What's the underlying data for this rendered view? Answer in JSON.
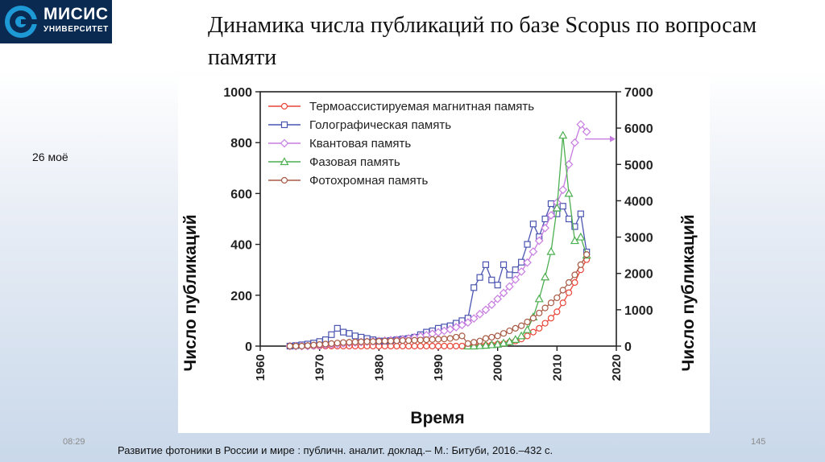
{
  "logo": {
    "name": "МИСИС",
    "subtitle": "УНИВЕРСИТЕТ"
  },
  "slide": {
    "title": "Динамика числа публикаций по базе Scopus по вопросам памяти",
    "side_note": "26 моё",
    "time": "08:29",
    "page_number": "145",
    "footer": "Развитие фотоники в России и мире : публичн. аналит. доклад.– М.: Битуби, 2016.–432 с."
  },
  "chart_data": {
    "type": "line",
    "xlabel": "Время",
    "ylabel_left": "Число публикаций",
    "ylabel_right": "Число публикаций",
    "xlim": [
      1960,
      2020
    ],
    "ylim_left": [
      0,
      1000
    ],
    "ylim_right": [
      0,
      7000
    ],
    "xticks": [
      1960,
      1970,
      1980,
      1990,
      2000,
      2010,
      2020
    ],
    "yticks_left": [
      0,
      200,
      400,
      600,
      800,
      1000
    ],
    "yticks_right": [
      0,
      1000,
      2000,
      3000,
      4000,
      5000,
      6000,
      7000
    ],
    "legend_position": "top-left",
    "grid": false,
    "series": [
      {
        "name": "Термоассистируемая магнитная память",
        "color": "#e8473a",
        "marker": "circle",
        "axis": "left",
        "x": [
          1965,
          1966,
          1967,
          1968,
          1969,
          1970,
          1971,
          1972,
          1973,
          1974,
          1975,
          1976,
          1977,
          1978,
          1979,
          1980,
          1981,
          1982,
          1983,
          1984,
          1985,
          1986,
          1987,
          1988,
          1989,
          1990,
          1991,
          1992,
          1993,
          1994,
          1995,
          1996,
          1997,
          1998,
          1999,
          2000,
          2001,
          2002,
          2003,
          2004,
          2005,
          2006,
          2007,
          2008,
          2009,
          2010,
          2011,
          2012,
          2013,
          2014,
          2015
        ],
        "y": [
          0,
          0,
          0,
          0,
          0,
          0,
          0,
          0,
          0,
          0,
          0,
          0,
          0,
          0,
          0,
          0,
          0,
          0,
          0,
          0,
          0,
          0,
          0,
          0,
          0,
          0,
          0,
          0,
          0,
          0,
          0,
          0,
          2,
          3,
          5,
          8,
          10,
          15,
          20,
          28,
          40,
          55,
          70,
          90,
          110,
          135,
          170,
          210,
          250,
          300,
          340
        ]
      },
      {
        "name": "Голографическая память",
        "color": "#4a55b0",
        "marker": "square",
        "axis": "left",
        "x": [
          1965,
          1966,
          1967,
          1968,
          1969,
          1970,
          1971,
          1972,
          1973,
          1974,
          1975,
          1976,
          1977,
          1978,
          1979,
          1980,
          1981,
          1982,
          1983,
          1984,
          1985,
          1986,
          1987,
          1988,
          1989,
          1990,
          1991,
          1992,
          1993,
          1994,
          1995,
          1996,
          1997,
          1998,
          1999,
          2000,
          2001,
          2002,
          2003,
          2004,
          2005,
          2006,
          2007,
          2008,
          2009,
          2010,
          2011,
          2012,
          2013,
          2014,
          2015
        ],
        "y": [
          0,
          2,
          5,
          8,
          12,
          18,
          25,
          45,
          70,
          55,
          50,
          40,
          35,
          30,
          25,
          20,
          20,
          22,
          25,
          28,
          30,
          35,
          45,
          55,
          60,
          70,
          75,
          80,
          90,
          100,
          110,
          230,
          270,
          320,
          260,
          240,
          320,
          280,
          300,
          330,
          400,
          480,
          430,
          500,
          560,
          520,
          550,
          500,
          470,
          520,
          370
        ]
      },
      {
        "name": "Квантовая память",
        "color": "#c77de0",
        "marker": "diamond",
        "axis": "right",
        "x": [
          1965,
          1966,
          1967,
          1968,
          1969,
          1970,
          1971,
          1972,
          1973,
          1974,
          1975,
          1976,
          1977,
          1978,
          1979,
          1980,
          1981,
          1982,
          1983,
          1984,
          1985,
          1986,
          1987,
          1988,
          1989,
          1990,
          1991,
          1992,
          1993,
          1994,
          1995,
          1996,
          1997,
          1998,
          1999,
          2000,
          2001,
          2002,
          2003,
          2004,
          2005,
          2006,
          2007,
          2008,
          2009,
          2010,
          2011,
          2012,
          2013,
          2014,
          2015
        ],
        "y": [
          0,
          0,
          0,
          0,
          10,
          20,
          30,
          45,
          60,
          75,
          90,
          100,
          110,
          120,
          130,
          140,
          150,
          160,
          170,
          190,
          210,
          240,
          270,
          300,
          340,
          380,
          420,
          460,
          520,
          580,
          650,
          760,
          880,
          1000,
          1140,
          1300,
          1460,
          1640,
          1830,
          2050,
          2300,
          2600,
          2900,
          3250,
          3600,
          3950,
          4300,
          5000,
          5600,
          6100,
          5900
        ]
      },
      {
        "name": "Фазовая память",
        "color": "#4caf50",
        "marker": "triangle",
        "axis": "right",
        "x": [
          1995,
          1996,
          1997,
          1998,
          1999,
          2000,
          2001,
          2002,
          2003,
          2004,
          2005,
          2006,
          2007,
          2008,
          2009,
          2010,
          2011,
          2012,
          2013,
          2014,
          2015
        ],
        "y": [
          0,
          0,
          10,
          20,
          35,
          50,
          80,
          120,
          180,
          280,
          450,
          800,
          1300,
          1900,
          2600,
          3800,
          5800,
          4200,
          2900,
          3000,
          2500
        ]
      },
      {
        "name": "Фотохромная память",
        "color": "#a85b45",
        "marker": "circle",
        "axis": "left",
        "x": [
          1965,
          1966,
          1967,
          1968,
          1969,
          1970,
          1971,
          1972,
          1973,
          1974,
          1975,
          1976,
          1977,
          1978,
          1979,
          1980,
          1981,
          1982,
          1983,
          1984,
          1985,
          1986,
          1987,
          1988,
          1989,
          1990,
          1991,
          1992,
          1993,
          1994,
          1995,
          1996,
          1997,
          1998,
          1999,
          2000,
          2001,
          2002,
          2003,
          2004,
          2005,
          2006,
          2007,
          2008,
          2009,
          2010,
          2011,
          2012,
          2013,
          2014,
          2015
        ],
        "y": [
          0,
          0,
          0,
          2,
          4,
          6,
          8,
          10,
          12,
          14,
          15,
          16,
          17,
          18,
          18,
          19,
          20,
          20,
          21,
          22,
          22,
          23,
          24,
          25,
          26,
          27,
          28,
          30,
          35,
          40,
          10,
          15,
          20,
          30,
          35,
          40,
          50,
          60,
          70,
          80,
          95,
          110,
          130,
          150,
          170,
          190,
          220,
          250,
          280,
          320,
          360
        ]
      }
    ]
  }
}
